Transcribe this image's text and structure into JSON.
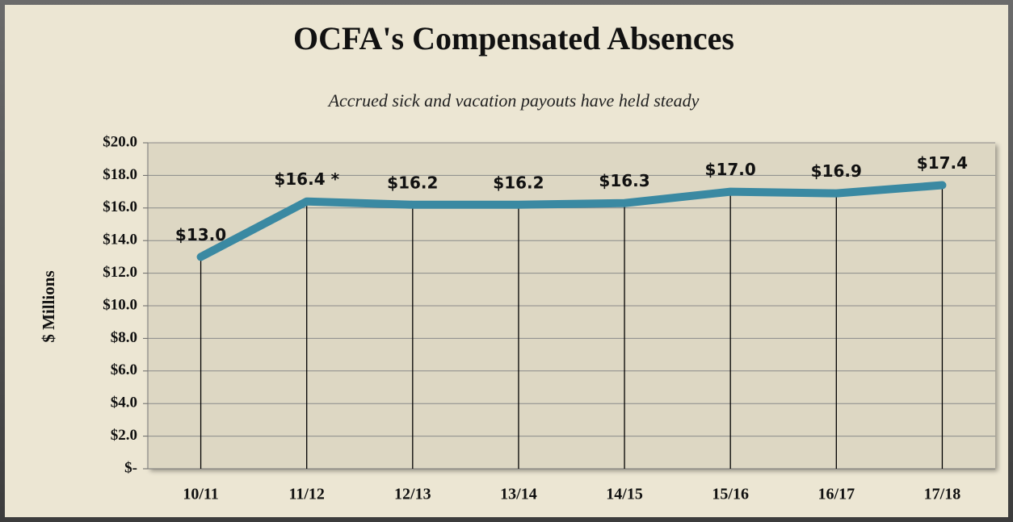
{
  "chart_data": {
    "type": "line",
    "title": "OCFA's Compensated Absences",
    "subtitle": "Accrued sick and vacation payouts have held steady",
    "y_label": "$ Millions",
    "categories": [
      "10/11",
      "11/12",
      "12/13",
      "13/14",
      "14/15",
      "15/16",
      "16/17",
      "17/18"
    ],
    "series": [
      {
        "name": "Compensated Absences",
        "color": "#3a89a2",
        "values": [
          13.0,
          16.4,
          16.2,
          16.2,
          16.3,
          17.0,
          16.9,
          17.4
        ],
        "value_labels": [
          "$13.0",
          "$16.4 *",
          "$16.2",
          "$16.2",
          "$16.3",
          "$17.0",
          "$16.9",
          "$17.4"
        ]
      }
    ],
    "ylim": [
      0,
      20
    ],
    "yticks": [
      {
        "value": 0,
        "label": "$-"
      },
      {
        "value": 2,
        "label": "$2.0"
      },
      {
        "value": 4,
        "label": "$4.0"
      },
      {
        "value": 6,
        "label": "$6.0"
      },
      {
        "value": 8,
        "label": "$8.0"
      },
      {
        "value": 10,
        "label": "$10.0"
      },
      {
        "value": 12,
        "label": "$12.0"
      },
      {
        "value": 14,
        "label": "$14.0"
      },
      {
        "value": 16,
        "label": "$16.0"
      },
      {
        "value": 18,
        "label": "$18.0"
      },
      {
        "value": 20,
        "label": "$20.0"
      }
    ],
    "grid": true
  }
}
